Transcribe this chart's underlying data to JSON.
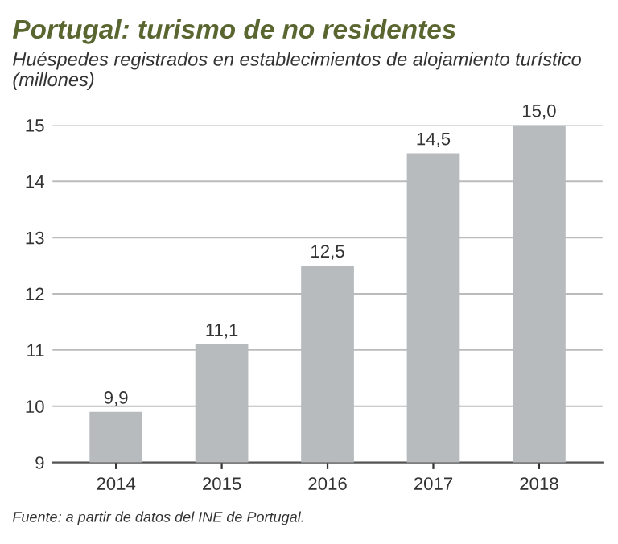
{
  "chart_data": {
    "type": "bar",
    "title": "Portugal: turismo de no residentes",
    "subtitle": "Huéspedes registrados en establecimientos de alojamiento turístico (millones)",
    "categories": [
      "2014",
      "2015",
      "2016",
      "2017",
      "2018"
    ],
    "values": [
      9.9,
      11.1,
      12.5,
      14.5,
      15.0
    ],
    "value_labels": [
      "9,9",
      "11,1",
      "12,5",
      "14,5",
      "15,0"
    ],
    "color": "#b7bbbd",
    "ylim": [
      9,
      15
    ],
    "yticks": [
      9,
      10,
      11,
      12,
      13,
      14,
      15
    ],
    "grid": "y",
    "legend": false,
    "annotations": [
      "Fuente: a partir de datos del INE de Portugal."
    ]
  }
}
